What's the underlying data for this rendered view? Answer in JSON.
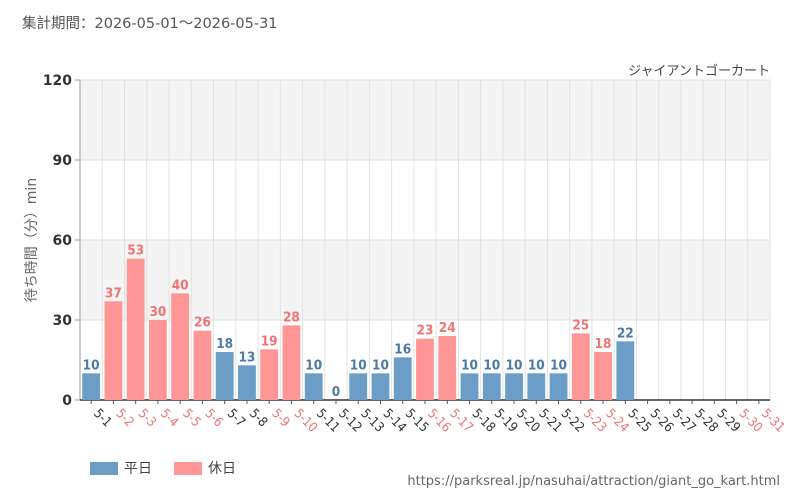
{
  "header": {
    "period": "集計期間：2026-05-01～2026-05-31",
    "ride_name": "ジャイアントゴーカート",
    "source_url": "https://parksreal.jp/nasuhai/attraction/giant_go_kart.html"
  },
  "colors": {
    "weekday": "#6b9dc6",
    "holiday": "#ff9696",
    "weekday_text": "#4b7aa6",
    "holiday_text": "#ee7474",
    "band": "#f4f4f4",
    "grid": "#e2e2e2"
  },
  "chart_data": {
    "type": "bar",
    "ylabel": "待ち時間（分）min",
    "ylim": [
      0,
      120
    ],
    "yticks": [
      0,
      30,
      60,
      90,
      120
    ],
    "grid": true,
    "legend_position": "bottom-left",
    "legend": [
      {
        "key": "weekday",
        "label": "平日"
      },
      {
        "key": "holiday",
        "label": "休日"
      }
    ],
    "categories": [
      "5-1",
      "5-2",
      "5-3",
      "5-4",
      "5-5",
      "5-6",
      "5-7",
      "5-8",
      "5-9",
      "5-10",
      "5-11",
      "5-12",
      "5-13",
      "5-14",
      "5-15",
      "5-16",
      "5-17",
      "5-18",
      "5-19",
      "5-20",
      "5-21",
      "5-22",
      "5-23",
      "5-24",
      "5-25",
      "5-26",
      "5-27",
      "5-28",
      "5-29",
      "5-30",
      "5-31"
    ],
    "values": [
      10,
      37,
      53,
      30,
      40,
      26,
      18,
      13,
      19,
      28,
      10,
      0,
      10,
      10,
      16,
      23,
      24,
      10,
      10,
      10,
      10,
      10,
      25,
      18,
      22,
      null,
      null,
      null,
      null,
      null,
      null
    ],
    "day_type": [
      "weekday",
      "holiday",
      "holiday",
      "holiday",
      "holiday",
      "holiday",
      "weekday",
      "weekday",
      "holiday",
      "holiday",
      "weekday",
      "weekday",
      "weekday",
      "weekday",
      "weekday",
      "holiday",
      "holiday",
      "weekday",
      "weekday",
      "weekday",
      "weekday",
      "weekday",
      "holiday",
      "holiday",
      "weekday",
      "weekday",
      "weekday",
      "weekday",
      "weekday",
      "holiday",
      "holiday"
    ]
  }
}
